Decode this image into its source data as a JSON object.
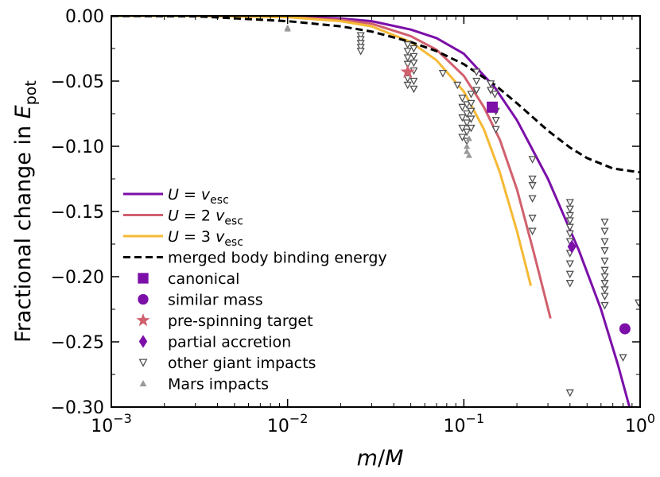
{
  "chart_data": {
    "type": "line",
    "x_scale": "log",
    "xlim": [
      0.001,
      1
    ],
    "ylim": [
      -0.3,
      0.0
    ],
    "xlabel": "m/M",
    "ylabel": "Fractional change in E_pot",
    "ylabel_text": "Fractional change in ",
    "ylabel_symbol": "E",
    "ylabel_subscript": "pot",
    "xlabel_m": "m",
    "xlabel_slash": "/",
    "xlabel_M": "M",
    "x_ticks": [
      {
        "value": 0.001,
        "base": "10",
        "exp": "−3"
      },
      {
        "value": 0.01,
        "base": "10",
        "exp": "−2"
      },
      {
        "value": 0.1,
        "base": "10",
        "exp": "−1"
      },
      {
        "value": 1,
        "base": "10",
        "exp": "0"
      }
    ],
    "y_ticks": [
      {
        "value": 0.0,
        "label": "0.00"
      },
      {
        "value": -0.05,
        "label": "−0.05"
      },
      {
        "value": -0.1,
        "label": "−0.10"
      },
      {
        "value": -0.15,
        "label": "−0.15"
      },
      {
        "value": -0.2,
        "label": "−0.20"
      },
      {
        "value": -0.25,
        "label": "−0.25"
      },
      {
        "value": -0.3,
        "label": "−0.30"
      }
    ],
    "series": [
      {
        "name": "U = v_esc",
        "legend_prefix": "U",
        "legend_eq": " = ",
        "legend_coef": "",
        "legend_v": "v",
        "legend_sub": "esc",
        "color": "#7b0fa8",
        "style": "solid",
        "x": [
          0.001,
          0.003,
          0.01,
          0.02,
          0.03,
          0.05,
          0.07,
          0.1,
          0.15,
          0.2,
          0.3,
          0.45,
          0.6,
          0.75,
          0.87
        ],
        "y": [
          0.0,
          0.0,
          -0.0005,
          -0.002,
          -0.004,
          -0.0105,
          -0.017,
          -0.029,
          -0.055,
          -0.08,
          -0.125,
          -0.18,
          -0.225,
          -0.268,
          -0.3
        ]
      },
      {
        "name": "U = 2 v_esc",
        "legend_prefix": "U",
        "legend_eq": " = ",
        "legend_coef": "2 ",
        "legend_v": "v",
        "legend_sub": "esc",
        "color": "#d1606e",
        "style": "solid",
        "x": [
          0.001,
          0.003,
          0.01,
          0.02,
          0.03,
          0.05,
          0.07,
          0.1,
          0.13,
          0.16,
          0.2,
          0.25,
          0.31
        ],
        "y": [
          0.0,
          0.0,
          -0.0008,
          -0.003,
          -0.006,
          -0.0155,
          -0.026,
          -0.046,
          -0.07,
          -0.095,
          -0.133,
          -0.182,
          -0.232
        ]
      },
      {
        "name": "U = 3 v_esc",
        "legend_prefix": "U",
        "legend_eq": " = ",
        "legend_coef": "3 ",
        "legend_v": "v",
        "legend_sub": "esc",
        "color": "#f5b935",
        "style": "solid",
        "x": [
          0.001,
          0.003,
          0.01,
          0.02,
          0.03,
          0.05,
          0.07,
          0.1,
          0.13,
          0.16,
          0.2,
          0.24
        ],
        "y": [
          0.0,
          0.0,
          -0.001,
          -0.004,
          -0.008,
          -0.02,
          -0.034,
          -0.058,
          -0.087,
          -0.12,
          -0.165,
          -0.207
        ]
      },
      {
        "name": "merged body binding energy",
        "color": "#000000",
        "style": "dashed",
        "x": [
          0.001,
          0.003,
          0.01,
          0.02,
          0.03,
          0.05,
          0.07,
          0.1,
          0.15,
          0.2,
          0.3,
          0.4,
          0.5,
          0.7,
          1.0
        ],
        "y": [
          0.0,
          -0.0003,
          -0.004,
          -0.008,
          -0.012,
          -0.02,
          -0.027,
          -0.037,
          -0.053,
          -0.067,
          -0.088,
          -0.101,
          -0.109,
          -0.117,
          -0.12
        ]
      }
    ],
    "markers": [
      {
        "name": "canonical",
        "shape": "square",
        "color": "#7b0fa8",
        "points": [
          [
            0.145,
            -0.07
          ]
        ]
      },
      {
        "name": "similar mass",
        "shape": "circle",
        "color": "#7b0fa8",
        "points": [
          [
            0.82,
            -0.24
          ]
        ]
      },
      {
        "name": "pre-spinning target",
        "shape": "star",
        "color": "#d1606e",
        "points": [
          [
            0.048,
            -0.043
          ]
        ]
      },
      {
        "name": "partial accretion",
        "shape": "diamond",
        "color": "#7b0fa8",
        "points": [
          [
            0.41,
            -0.177
          ]
        ]
      },
      {
        "name": "other giant impacts",
        "shape": "triangle-down-open",
        "color": "#505050",
        "points": [
          [
            0.026,
            -0.015
          ],
          [
            0.026,
            -0.018
          ],
          [
            0.026,
            -0.021
          ],
          [
            0.026,
            -0.024
          ],
          [
            0.026,
            -0.027
          ],
          [
            0.048,
            -0.022
          ],
          [
            0.048,
            -0.027
          ],
          [
            0.048,
            -0.032
          ],
          [
            0.048,
            -0.037
          ],
          [
            0.048,
            -0.048
          ],
          [
            0.048,
            -0.053
          ],
          [
            0.052,
            -0.025
          ],
          [
            0.052,
            -0.031
          ],
          [
            0.052,
            -0.036
          ],
          [
            0.052,
            -0.042
          ],
          [
            0.052,
            -0.05
          ],
          [
            0.052,
            -0.056
          ],
          [
            0.076,
            -0.044
          ],
          [
            0.092,
            -0.053
          ],
          [
            0.098,
            -0.063
          ],
          [
            0.098,
            -0.07
          ],
          [
            0.098,
            -0.078
          ],
          [
            0.098,
            -0.086
          ],
          [
            0.098,
            -0.093
          ],
          [
            0.104,
            -0.068
          ],
          [
            0.104,
            -0.075
          ],
          [
            0.104,
            -0.082
          ],
          [
            0.104,
            -0.089
          ],
          [
            0.104,
            -0.096
          ],
          [
            0.11,
            -0.06
          ],
          [
            0.11,
            -0.067
          ],
          [
            0.11,
            -0.073
          ],
          [
            0.11,
            -0.079
          ],
          [
            0.11,
            -0.086
          ],
          [
            0.118,
            -0.043
          ],
          [
            0.118,
            -0.05
          ],
          [
            0.118,
            -0.057
          ],
          [
            0.142,
            -0.052
          ],
          [
            0.142,
            -0.057
          ],
          [
            0.15,
            -0.06
          ],
          [
            0.152,
            -0.073
          ],
          [
            0.152,
            -0.08
          ],
          [
            0.152,
            -0.087
          ],
          [
            0.245,
            -0.11
          ],
          [
            0.245,
            -0.125
          ],
          [
            0.245,
            -0.13
          ],
          [
            0.245,
            -0.14
          ],
          [
            0.245,
            -0.155
          ],
          [
            0.245,
            -0.165
          ],
          [
            0.4,
            -0.143
          ],
          [
            0.4,
            -0.148
          ],
          [
            0.4,
            -0.153
          ],
          [
            0.4,
            -0.157
          ],
          [
            0.4,
            -0.162
          ],
          [
            0.4,
            -0.167
          ],
          [
            0.4,
            -0.173
          ],
          [
            0.4,
            -0.182
          ],
          [
            0.4,
            -0.19
          ],
          [
            0.4,
            -0.198
          ],
          [
            0.4,
            -0.205
          ],
          [
            0.4,
            -0.289
          ],
          [
            0.63,
            -0.158
          ],
          [
            0.63,
            -0.165
          ],
          [
            0.63,
            -0.173
          ],
          [
            0.63,
            -0.18
          ],
          [
            0.63,
            -0.188
          ],
          [
            0.63,
            -0.195
          ],
          [
            0.63,
            -0.2
          ],
          [
            0.63,
            -0.205
          ],
          [
            0.63,
            -0.21
          ],
          [
            0.63,
            -0.215
          ],
          [
            0.63,
            -0.222
          ],
          [
            0.8,
            -0.262
          ],
          [
            0.98,
            -0.22
          ]
        ]
      },
      {
        "name": "Mars impacts",
        "shape": "triangle-up",
        "color": "#999999",
        "points": [
          [
            0.01,
            -0.009
          ],
          [
            0.01,
            -0.01
          ],
          [
            0.104,
            -0.1
          ],
          [
            0.104,
            -0.104
          ],
          [
            0.107,
            -0.094
          ],
          [
            0.107,
            -0.107
          ]
        ]
      }
    ]
  }
}
